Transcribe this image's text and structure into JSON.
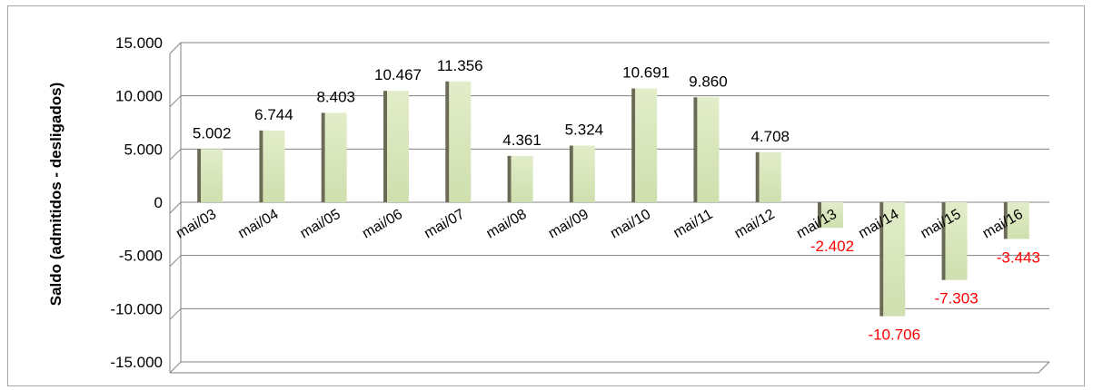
{
  "chart_data": {
    "type": "bar",
    "title": "",
    "xlabel": "",
    "ylabel": "Saldo (admitidos - desligados)",
    "categories": [
      "mai/03",
      "mai/04",
      "mai/05",
      "mai/06",
      "mai/07",
      "mai/08",
      "mai/09",
      "mai/10",
      "mai/11",
      "mai/12",
      "mai/13",
      "mai/14",
      "mai/15",
      "mai/16"
    ],
    "values": [
      5002,
      6744,
      8403,
      10467,
      11356,
      4361,
      5324,
      10691,
      9860,
      4708,
      -2402,
      -10706,
      -7303,
      -3443
    ],
    "data_labels": [
      "5.002",
      "6.744",
      "8.403",
      "10.467",
      "11.356",
      "4.361",
      "5.324",
      "10.691",
      "9.860",
      "4.708",
      "-2.402",
      "-10.706",
      "-7.303",
      "-3.443"
    ],
    "ylim": [
      -15000,
      15000
    ],
    "yticks": [
      15000,
      10000,
      5000,
      0,
      -5000,
      -10000,
      -15000
    ],
    "ytick_labels": [
      "15.000",
      "10.000",
      "5.000",
      "0",
      "-5.000",
      "-10.000",
      "-15.000"
    ],
    "grid": true,
    "legend": "none",
    "colors": {
      "bar_face_top": "#e2edc9",
      "bar_face_bottom": "#cfdfae",
      "bar_side": "#6b6b55",
      "grid": "#808080",
      "positive_label": "#000000",
      "negative_label": "#ff0000"
    }
  }
}
